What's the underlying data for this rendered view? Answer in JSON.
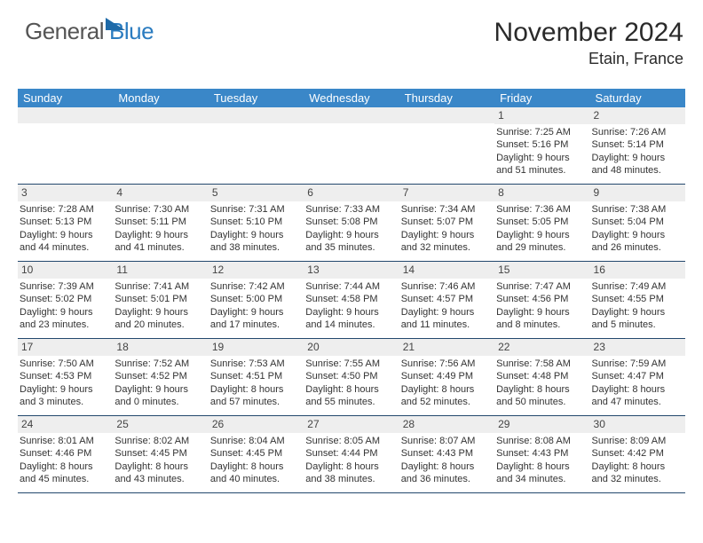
{
  "logo": {
    "part1": "General",
    "part2": "Blue"
  },
  "header": {
    "title": "November 2024",
    "location": "Etain, France"
  },
  "style": {
    "header_bg": "#3a87c8",
    "header_text": "#ffffff",
    "daynum_bg": "#eeeeee",
    "border_color": "#23486d",
    "body_text": "#333333",
    "logo_gray": "#555555",
    "logo_blue": "#2b7cc0",
    "font_family": "Arial, Helvetica, sans-serif",
    "title_fontsize": 30,
    "location_fontsize": 18,
    "header_cell_fontsize": 13,
    "cell_fontsize": 11
  },
  "daysOfWeek": [
    "Sunday",
    "Monday",
    "Tuesday",
    "Wednesday",
    "Thursday",
    "Friday",
    "Saturday"
  ],
  "weeks": [
    [
      null,
      null,
      null,
      null,
      null,
      {
        "num": "1",
        "sunrise": "Sunrise: 7:25 AM",
        "sunset": "Sunset: 5:16 PM",
        "daylight": "Daylight: 9 hours and 51 minutes."
      },
      {
        "num": "2",
        "sunrise": "Sunrise: 7:26 AM",
        "sunset": "Sunset: 5:14 PM",
        "daylight": "Daylight: 9 hours and 48 minutes."
      }
    ],
    [
      {
        "num": "3",
        "sunrise": "Sunrise: 7:28 AM",
        "sunset": "Sunset: 5:13 PM",
        "daylight": "Daylight: 9 hours and 44 minutes."
      },
      {
        "num": "4",
        "sunrise": "Sunrise: 7:30 AM",
        "sunset": "Sunset: 5:11 PM",
        "daylight": "Daylight: 9 hours and 41 minutes."
      },
      {
        "num": "5",
        "sunrise": "Sunrise: 7:31 AM",
        "sunset": "Sunset: 5:10 PM",
        "daylight": "Daylight: 9 hours and 38 minutes."
      },
      {
        "num": "6",
        "sunrise": "Sunrise: 7:33 AM",
        "sunset": "Sunset: 5:08 PM",
        "daylight": "Daylight: 9 hours and 35 minutes."
      },
      {
        "num": "7",
        "sunrise": "Sunrise: 7:34 AM",
        "sunset": "Sunset: 5:07 PM",
        "daylight": "Daylight: 9 hours and 32 minutes."
      },
      {
        "num": "8",
        "sunrise": "Sunrise: 7:36 AM",
        "sunset": "Sunset: 5:05 PM",
        "daylight": "Daylight: 9 hours and 29 minutes."
      },
      {
        "num": "9",
        "sunrise": "Sunrise: 7:38 AM",
        "sunset": "Sunset: 5:04 PM",
        "daylight": "Daylight: 9 hours and 26 minutes."
      }
    ],
    [
      {
        "num": "10",
        "sunrise": "Sunrise: 7:39 AM",
        "sunset": "Sunset: 5:02 PM",
        "daylight": "Daylight: 9 hours and 23 minutes."
      },
      {
        "num": "11",
        "sunrise": "Sunrise: 7:41 AM",
        "sunset": "Sunset: 5:01 PM",
        "daylight": "Daylight: 9 hours and 20 minutes."
      },
      {
        "num": "12",
        "sunrise": "Sunrise: 7:42 AM",
        "sunset": "Sunset: 5:00 PM",
        "daylight": "Daylight: 9 hours and 17 minutes."
      },
      {
        "num": "13",
        "sunrise": "Sunrise: 7:44 AM",
        "sunset": "Sunset: 4:58 PM",
        "daylight": "Daylight: 9 hours and 14 minutes."
      },
      {
        "num": "14",
        "sunrise": "Sunrise: 7:46 AM",
        "sunset": "Sunset: 4:57 PM",
        "daylight": "Daylight: 9 hours and 11 minutes."
      },
      {
        "num": "15",
        "sunrise": "Sunrise: 7:47 AM",
        "sunset": "Sunset: 4:56 PM",
        "daylight": "Daylight: 9 hours and 8 minutes."
      },
      {
        "num": "16",
        "sunrise": "Sunrise: 7:49 AM",
        "sunset": "Sunset: 4:55 PM",
        "daylight": "Daylight: 9 hours and 5 minutes."
      }
    ],
    [
      {
        "num": "17",
        "sunrise": "Sunrise: 7:50 AM",
        "sunset": "Sunset: 4:53 PM",
        "daylight": "Daylight: 9 hours and 3 minutes."
      },
      {
        "num": "18",
        "sunrise": "Sunrise: 7:52 AM",
        "sunset": "Sunset: 4:52 PM",
        "daylight": "Daylight: 9 hours and 0 minutes."
      },
      {
        "num": "19",
        "sunrise": "Sunrise: 7:53 AM",
        "sunset": "Sunset: 4:51 PM",
        "daylight": "Daylight: 8 hours and 57 minutes."
      },
      {
        "num": "20",
        "sunrise": "Sunrise: 7:55 AM",
        "sunset": "Sunset: 4:50 PM",
        "daylight": "Daylight: 8 hours and 55 minutes."
      },
      {
        "num": "21",
        "sunrise": "Sunrise: 7:56 AM",
        "sunset": "Sunset: 4:49 PM",
        "daylight": "Daylight: 8 hours and 52 minutes."
      },
      {
        "num": "22",
        "sunrise": "Sunrise: 7:58 AM",
        "sunset": "Sunset: 4:48 PM",
        "daylight": "Daylight: 8 hours and 50 minutes."
      },
      {
        "num": "23",
        "sunrise": "Sunrise: 7:59 AM",
        "sunset": "Sunset: 4:47 PM",
        "daylight": "Daylight: 8 hours and 47 minutes."
      }
    ],
    [
      {
        "num": "24",
        "sunrise": "Sunrise: 8:01 AM",
        "sunset": "Sunset: 4:46 PM",
        "daylight": "Daylight: 8 hours and 45 minutes."
      },
      {
        "num": "25",
        "sunrise": "Sunrise: 8:02 AM",
        "sunset": "Sunset: 4:45 PM",
        "daylight": "Daylight: 8 hours and 43 minutes."
      },
      {
        "num": "26",
        "sunrise": "Sunrise: 8:04 AM",
        "sunset": "Sunset: 4:45 PM",
        "daylight": "Daylight: 8 hours and 40 minutes."
      },
      {
        "num": "27",
        "sunrise": "Sunrise: 8:05 AM",
        "sunset": "Sunset: 4:44 PM",
        "daylight": "Daylight: 8 hours and 38 minutes."
      },
      {
        "num": "28",
        "sunrise": "Sunrise: 8:07 AM",
        "sunset": "Sunset: 4:43 PM",
        "daylight": "Daylight: 8 hours and 36 minutes."
      },
      {
        "num": "29",
        "sunrise": "Sunrise: 8:08 AM",
        "sunset": "Sunset: 4:43 PM",
        "daylight": "Daylight: 8 hours and 34 minutes."
      },
      {
        "num": "30",
        "sunrise": "Sunrise: 8:09 AM",
        "sunset": "Sunset: 4:42 PM",
        "daylight": "Daylight: 8 hours and 32 minutes."
      }
    ]
  ]
}
